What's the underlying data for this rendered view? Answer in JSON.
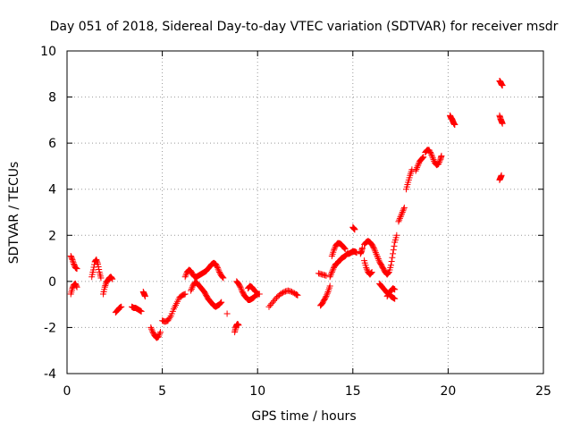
{
  "chart_data": {
    "type": "scatter",
    "title": "Day 051 of 2018, Sidereal Day-to-day VTEC variation (SDTVAR) for receiver msdr",
    "xlabel": "GPS time / hours",
    "ylabel": "SDTVAR / TECUs",
    "xlim": [
      0,
      25
    ],
    "ylim": [
      -4,
      10
    ],
    "xticks": [
      0,
      5,
      10,
      15,
      20,
      25
    ],
    "yticks": [
      -4,
      -2,
      0,
      2,
      4,
      6,
      8,
      10
    ],
    "xtick_labels": [
      "0",
      "5",
      "10",
      "15",
      "20",
      "25"
    ],
    "ytick_labels": [
      "-4",
      "-2",
      "0",
      "2",
      "4",
      "6",
      "8",
      "10"
    ],
    "grid": true,
    "marker": "+",
    "color": "#ff0000",
    "series": [
      {
        "name": "SDTVAR",
        "segments": [
          [
            [
              0.2,
              1.1
            ],
            [
              0.28,
              0.95
            ],
            [
              0.36,
              0.75
            ],
            [
              0.44,
              0.6
            ],
            [
              0.52,
              0.55
            ]
          ],
          [
            [
              0.2,
              -0.55
            ],
            [
              0.28,
              -0.3
            ],
            [
              0.36,
              -0.15
            ],
            [
              0.44,
              -0.1
            ],
            [
              0.52,
              -0.25
            ]
          ],
          [
            [
              1.3,
              0.2
            ],
            [
              1.38,
              0.5
            ],
            [
              1.46,
              0.85
            ],
            [
              1.54,
              0.95
            ],
            [
              1.62,
              0.75
            ],
            [
              1.7,
              0.4
            ],
            [
              1.78,
              0.15
            ]
          ],
          [
            [
              1.9,
              -0.55
            ],
            [
              1.98,
              -0.25
            ],
            [
              2.06,
              -0.05
            ],
            [
              2.14,
              0.05
            ],
            [
              2.22,
              0.15
            ],
            [
              2.3,
              0.2
            ],
            [
              2.38,
              0.1
            ]
          ],
          [
            [
              2.55,
              -1.35
            ],
            [
              2.65,
              -1.25
            ],
            [
              2.75,
              -1.15
            ],
            [
              2.85,
              -1.1
            ]
          ],
          [
            [
              3.4,
              -1.1
            ],
            [
              3.5,
              -1.15
            ],
            [
              3.6,
              -1.15
            ],
            [
              3.7,
              -1.2
            ],
            [
              3.8,
              -1.25
            ],
            [
              3.9,
              -1.3
            ]
          ],
          [
            [
              4.0,
              -0.45
            ],
            [
              4.05,
              -0.55
            ],
            [
              4.1,
              -0.65
            ]
          ],
          [
            [
              4.4,
              -2.0
            ],
            [
              4.5,
              -2.2
            ],
            [
              4.6,
              -2.35
            ],
            [
              4.7,
              -2.45
            ],
            [
              4.8,
              -2.4
            ],
            [
              4.9,
              -2.2
            ]
          ],
          [
            [
              5.0,
              -1.7
            ],
            [
              5.15,
              -1.75
            ],
            [
              5.3,
              -1.7
            ],
            [
              5.45,
              -1.5
            ],
            [
              5.6,
              -1.2
            ],
            [
              5.75,
              -0.95
            ],
            [
              5.9,
              -0.7
            ],
            [
              6.05,
              -0.6
            ],
            [
              6.2,
              -0.55
            ]
          ],
          [
            [
              6.2,
              0.2
            ],
            [
              6.3,
              0.4
            ],
            [
              6.4,
              0.5
            ],
            [
              6.5,
              0.45
            ],
            [
              6.6,
              0.3
            ],
            [
              6.7,
              0.2
            ],
            [
              6.8,
              0.2
            ],
            [
              6.9,
              0.25
            ],
            [
              7.0,
              0.3
            ],
            [
              7.1,
              0.35
            ],
            [
              7.2,
              0.4
            ],
            [
              7.3,
              0.45
            ],
            [
              7.4,
              0.55
            ],
            [
              7.5,
              0.65
            ],
            [
              7.6,
              0.75
            ],
            [
              7.7,
              0.8
            ],
            [
              7.8,
              0.75
            ],
            [
              7.9,
              0.6
            ],
            [
              8.0,
              0.4
            ],
            [
              8.1,
              0.25
            ],
            [
              8.2,
              0.15
            ]
          ],
          [
            [
              6.5,
              -0.4
            ],
            [
              6.6,
              -0.2
            ],
            [
              6.7,
              -0.05
            ],
            [
              6.8,
              -0.05
            ],
            [
              6.9,
              -0.15
            ],
            [
              7.0,
              -0.25
            ],
            [
              7.1,
              -0.35
            ],
            [
              7.2,
              -0.45
            ],
            [
              7.3,
              -0.6
            ],
            [
              7.4,
              -0.75
            ],
            [
              7.5,
              -0.85
            ],
            [
              7.6,
              -0.95
            ],
            [
              7.7,
              -1.05
            ],
            [
              7.8,
              -1.1
            ],
            [
              7.9,
              -1.05
            ],
            [
              8.0,
              -1.0
            ],
            [
              8.1,
              -0.9
            ]
          ],
          [
            [
              8.4,
              -1.4
            ]
          ],
          [
            [
              8.8,
              -2.2
            ],
            [
              8.85,
              -2.0
            ],
            [
              8.9,
              -1.9
            ],
            [
              8.95,
              -1.85
            ],
            [
              9.0,
              -1.9
            ]
          ],
          [
            [
              8.9,
              0.0
            ],
            [
              9.0,
              -0.1
            ],
            [
              9.1,
              -0.25
            ],
            [
              9.2,
              -0.45
            ],
            [
              9.3,
              -0.6
            ],
            [
              9.4,
              -0.7
            ],
            [
              9.5,
              -0.8
            ],
            [
              9.6,
              -0.8
            ],
            [
              9.7,
              -0.75
            ],
            [
              9.8,
              -0.7
            ],
            [
              9.9,
              -0.6
            ],
            [
              10.0,
              -0.55
            ],
            [
              10.1,
              -0.55
            ]
          ],
          [
            [
              9.5,
              -0.3
            ],
            [
              9.6,
              -0.2
            ],
            [
              9.7,
              -0.25
            ],
            [
              9.8,
              -0.35
            ],
            [
              9.9,
              -0.45
            ]
          ],
          [
            [
              10.6,
              -1.1
            ],
            [
              10.8,
              -0.9
            ],
            [
              11.0,
              -0.7
            ],
            [
              11.2,
              -0.55
            ],
            [
              11.4,
              -0.45
            ],
            [
              11.6,
              -0.4
            ],
            [
              11.8,
              -0.45
            ],
            [
              12.0,
              -0.55
            ],
            [
              12.1,
              -0.6
            ]
          ],
          [
            [
              13.2,
              0.35
            ],
            [
              13.4,
              0.3
            ],
            [
              13.6,
              0.25
            ]
          ],
          [
            [
              13.3,
              -1.05
            ],
            [
              13.4,
              -0.95
            ],
            [
              13.5,
              -0.8
            ],
            [
              13.6,
              -0.65
            ],
            [
              13.7,
              -0.45
            ],
            [
              13.8,
              -0.2
            ]
          ],
          [
            [
              13.8,
              0.2
            ],
            [
              13.9,
              0.4
            ],
            [
              14.0,
              0.6
            ],
            [
              14.1,
              0.75
            ],
            [
              14.2,
              0.8
            ],
            [
              14.3,
              0.9
            ],
            [
              14.4,
              1.0
            ],
            [
              14.5,
              1.05
            ],
            [
              14.6,
              1.1
            ],
            [
              14.7,
              1.2
            ],
            [
              14.8,
              1.2
            ],
            [
              14.9,
              1.25
            ],
            [
              15.0,
              1.3
            ],
            [
              15.1,
              1.3
            ],
            [
              15.2,
              1.25
            ]
          ],
          [
            [
              13.9,
              1.1
            ],
            [
              14.0,
              1.35
            ],
            [
              14.1,
              1.55
            ],
            [
              14.2,
              1.65
            ],
            [
              14.3,
              1.65
            ],
            [
              14.4,
              1.6
            ],
            [
              14.5,
              1.5
            ],
            [
              14.6,
              1.4
            ]
          ],
          [
            [
              15.0,
              2.35
            ],
            [
              15.05,
              2.3
            ],
            [
              15.1,
              2.25
            ]
          ],
          [
            [
              15.4,
              1.2
            ],
            [
              15.45,
              1.3
            ],
            [
              15.5,
              1.45
            ]
          ],
          [
            [
              15.6,
              1.6
            ],
            [
              15.7,
              1.7
            ],
            [
              15.8,
              1.75
            ],
            [
              15.9,
              1.7
            ],
            [
              16.0,
              1.6
            ],
            [
              16.1,
              1.45
            ],
            [
              16.2,
              1.25
            ],
            [
              16.3,
              1.05
            ],
            [
              16.4,
              0.85
            ],
            [
              16.5,
              0.7
            ],
            [
              16.6,
              0.55
            ],
            [
              16.7,
              0.4
            ],
            [
              16.8,
              0.3
            ],
            [
              16.9,
              0.4
            ],
            [
              17.0,
              0.7
            ],
            [
              17.1,
              1.2
            ],
            [
              17.2,
              1.7
            ],
            [
              17.3,
              2.0
            ]
          ],
          [
            [
              15.6,
              0.9
            ],
            [
              15.7,
              0.6
            ],
            [
              15.8,
              0.4
            ],
            [
              15.9,
              0.3
            ],
            [
              16.0,
              0.4
            ]
          ],
          [
            [
              16.4,
              -0.1
            ],
            [
              16.5,
              -0.2
            ],
            [
              16.6,
              -0.3
            ],
            [
              16.7,
              -0.4
            ],
            [
              16.8,
              -0.5
            ],
            [
              16.9,
              -0.55
            ],
            [
              17.0,
              -0.65
            ],
            [
              17.1,
              -0.7
            ],
            [
              17.2,
              -0.75
            ]
          ],
          [
            [
              16.8,
              -0.65
            ],
            [
              16.9,
              -0.5
            ],
            [
              17.0,
              -0.4
            ],
            [
              17.1,
              -0.3
            ],
            [
              17.2,
              -0.35
            ]
          ],
          [
            [
              17.4,
              2.6
            ],
            [
              17.5,
              2.8
            ],
            [
              17.6,
              3.0
            ],
            [
              17.7,
              3.2
            ]
          ],
          [
            [
              17.8,
              4.0
            ],
            [
              17.9,
              4.3
            ],
            [
              18.0,
              4.6
            ],
            [
              18.1,
              4.85
            ]
          ],
          [
            [
              18.3,
              4.8
            ],
            [
              18.4,
              5.0
            ],
            [
              18.5,
              5.2
            ],
            [
              18.6,
              5.3
            ],
            [
              18.7,
              5.4
            ]
          ],
          [
            [
              18.8,
              5.6
            ],
            [
              18.9,
              5.7
            ],
            [
              19.0,
              5.7
            ],
            [
              19.1,
              5.55
            ],
            [
              19.2,
              5.35
            ],
            [
              19.3,
              5.15
            ],
            [
              19.4,
              5.05
            ],
            [
              19.5,
              5.1
            ],
            [
              19.6,
              5.3
            ],
            [
              19.65,
              5.45
            ]
          ],
          [
            [
              20.1,
              7.2
            ],
            [
              20.15,
              7.1
            ],
            [
              20.2,
              7.05
            ],
            [
              20.25,
              6.95
            ],
            [
              20.3,
              6.85
            ],
            [
              20.35,
              6.8
            ]
          ],
          [
            [
              22.7,
              8.7
            ],
            [
              22.75,
              8.65
            ],
            [
              22.8,
              8.55
            ],
            [
              22.85,
              8.5
            ]
          ],
          [
            [
              22.7,
              7.2
            ],
            [
              22.75,
              7.05
            ],
            [
              22.8,
              6.95
            ],
            [
              22.85,
              6.85
            ]
          ],
          [
            [
              22.7,
              4.4
            ],
            [
              22.75,
              4.5
            ],
            [
              22.8,
              4.6
            ]
          ]
        ]
      }
    ]
  }
}
